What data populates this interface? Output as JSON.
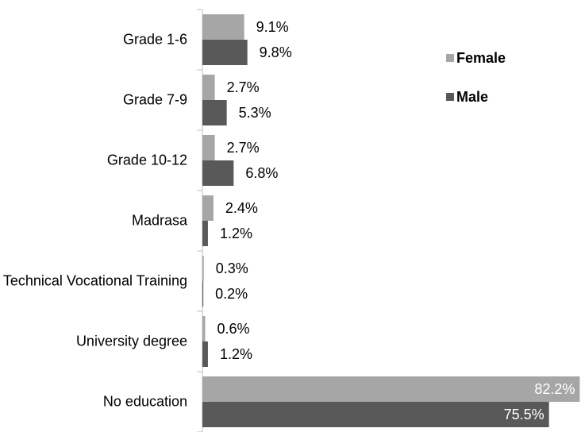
{
  "chart_data": {
    "type": "bar",
    "orientation": "horizontal",
    "categories": [
      "Grade 1-6",
      "Grade 7-9",
      "Grade 10-12",
      "Madrasa",
      "Technical Vocational Training",
      "University degree",
      "No education"
    ],
    "series": [
      {
        "name": "Female",
        "color": "#a6a6a6",
        "values": [
          9.1,
          2.7,
          2.7,
          2.4,
          0.3,
          0.6,
          82.2
        ],
        "value_labels": [
          "9.1%",
          "2.7%",
          "2.7%",
          "2.4%",
          "0.3%",
          "0.6%",
          "82.2%"
        ]
      },
      {
        "name": "Male",
        "color": "#595959",
        "values": [
          9.8,
          5.3,
          6.8,
          1.2,
          0.2,
          1.2,
          75.5
        ],
        "value_labels": [
          "9.8%",
          "5.3%",
          "6.8%",
          "1.2%",
          "0.2%",
          "1.2%",
          "75.5%"
        ]
      }
    ],
    "xlim": [
      0,
      83
    ],
    "legend": "upper right"
  }
}
